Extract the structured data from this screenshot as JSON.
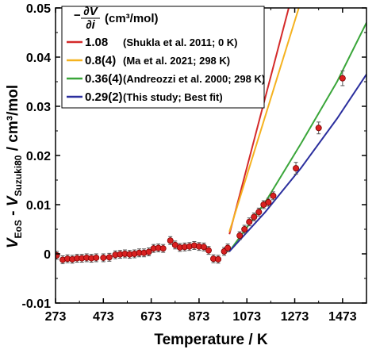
{
  "chart_data": {
    "type": "scatter",
    "xlabel": "Temperature / K",
    "ylabel_parts": {
      "v1": "V",
      "s1": "EoS",
      "dash": " - ",
      "v2": "V",
      "s2": "Suzuki80",
      "unit": " / cm³/mol"
    },
    "xlim": [
      273,
      1573
    ],
    "ylim": [
      -0.01,
      0.05
    ],
    "x_ticks": [
      273,
      473,
      673,
      873,
      1073,
      1273,
      1473
    ],
    "y_ticks": [
      -0.01,
      0,
      0.01,
      0.02,
      0.03,
      0.04,
      0.05
    ],
    "y_tick_labels": [
      "-0.01",
      "0",
      "0.01",
      "0.02",
      "0.03",
      "0.04",
      "0.05"
    ],
    "legend": {
      "header_prefix": "−",
      "header_num": "∂V",
      "header_den": "∂i",
      "header_unit": "(cm³/mol)",
      "entries": [
        {
          "value": "1.08",
          "ref": "Shukla et al. 2011; 0 K",
          "color": "#d42a2a"
        },
        {
          "value": "0.8(4)",
          "ref": "Ma et al. 2021; 298 K",
          "color": "#f5b21f"
        },
        {
          "value": "0.36(4)",
          "ref": "Andreozzi et al. 2000; 298 K",
          "color": "#3aa63a"
        },
        {
          "value": "0.29(2)",
          "ref": "This study; Best fit",
          "color": "#2b2f9e"
        }
      ]
    },
    "lines": [
      {
        "name": "1.08",
        "color": "#d42a2a",
        "points": [
          [
            1000,
            0.004
          ],
          [
            1248,
            0.05
          ]
        ]
      },
      {
        "name": "0.8(4)",
        "color": "#f5b21f",
        "points": [
          [
            1000,
            0.0045
          ],
          [
            1290,
            0.05
          ]
        ]
      },
      {
        "name": "0.36(4)",
        "color": "#3aa63a",
        "points": [
          [
            1000,
            0.0005
          ],
          [
            1150,
            0.0105
          ],
          [
            1300,
            0.0225
          ],
          [
            1450,
            0.035
          ],
          [
            1573,
            0.047
          ]
        ]
      },
      {
        "name": "0.29(2)",
        "color": "#2b2f9e",
        "points": [
          [
            1000,
            0.0005
          ],
          [
            1150,
            0.0085
          ],
          [
            1300,
            0.0175
          ],
          [
            1450,
            0.0275
          ],
          [
            1573,
            0.0365
          ]
        ]
      }
    ],
    "data_points": [
      [
        278,
        -0.0003,
        0.0008
      ],
      [
        303,
        -0.0012,
        0.0008
      ],
      [
        323,
        -0.001,
        0.0008
      ],
      [
        343,
        -0.0011,
        0.0008
      ],
      [
        363,
        -0.0009,
        0.0008
      ],
      [
        383,
        -0.0009,
        0.0008
      ],
      [
        403,
        -0.0008,
        0.0008
      ],
      [
        423,
        -0.0009,
        0.0008
      ],
      [
        443,
        -0.0008,
        0.0008
      ],
      [
        473,
        -0.0008,
        0.0008
      ],
      [
        498,
        -0.0007,
        0.0008
      ],
      [
        523,
        -0.0002,
        0.0008
      ],
      [
        543,
        -0.0001,
        0.0008
      ],
      [
        563,
        0.0,
        0.0008
      ],
      [
        583,
        -0.0001,
        0.0008
      ],
      [
        603,
        0.0,
        0.0008
      ],
      [
        623,
        0.0002,
        0.0008
      ],
      [
        643,
        0.0002,
        0.0008
      ],
      [
        663,
        0.0004,
        0.0008
      ],
      [
        683,
        0.0011,
        0.0008
      ],
      [
        703,
        0.0012,
        0.0008
      ],
      [
        723,
        0.0011,
        0.0008
      ],
      [
        753,
        0.0027,
        0.0008
      ],
      [
        773,
        0.0018,
        0.0008
      ],
      [
        793,
        0.0013,
        0.0008
      ],
      [
        813,
        0.0014,
        0.0008
      ],
      [
        833,
        0.0015,
        0.0008
      ],
      [
        853,
        0.0017,
        0.0008
      ],
      [
        873,
        0.0015,
        0.0008
      ],
      [
        893,
        0.0014,
        0.0008
      ],
      [
        913,
        0.0007,
        0.0008
      ],
      [
        933,
        -0.001,
        0.0008
      ],
      [
        953,
        -0.0011,
        0.0008
      ],
      [
        978,
        0.0005,
        0.0008
      ],
      [
        993,
        0.0012,
        0.0008
      ],
      [
        1043,
        0.0037,
        0.0008
      ],
      [
        1063,
        0.005,
        0.0008
      ],
      [
        1083,
        0.0065,
        0.0008
      ],
      [
        1103,
        0.0075,
        0.0008
      ],
      [
        1123,
        0.0085,
        0.0008
      ],
      [
        1143,
        0.01,
        0.0008
      ],
      [
        1163,
        0.0105,
        0.0008
      ],
      [
        1183,
        0.0118,
        0.0008
      ],
      [
        1278,
        0.0174,
        0.0012
      ],
      [
        1373,
        0.0256,
        0.0012
      ],
      [
        1473,
        0.0357,
        0.0015
      ]
    ],
    "marker_color": "#d92020"
  }
}
